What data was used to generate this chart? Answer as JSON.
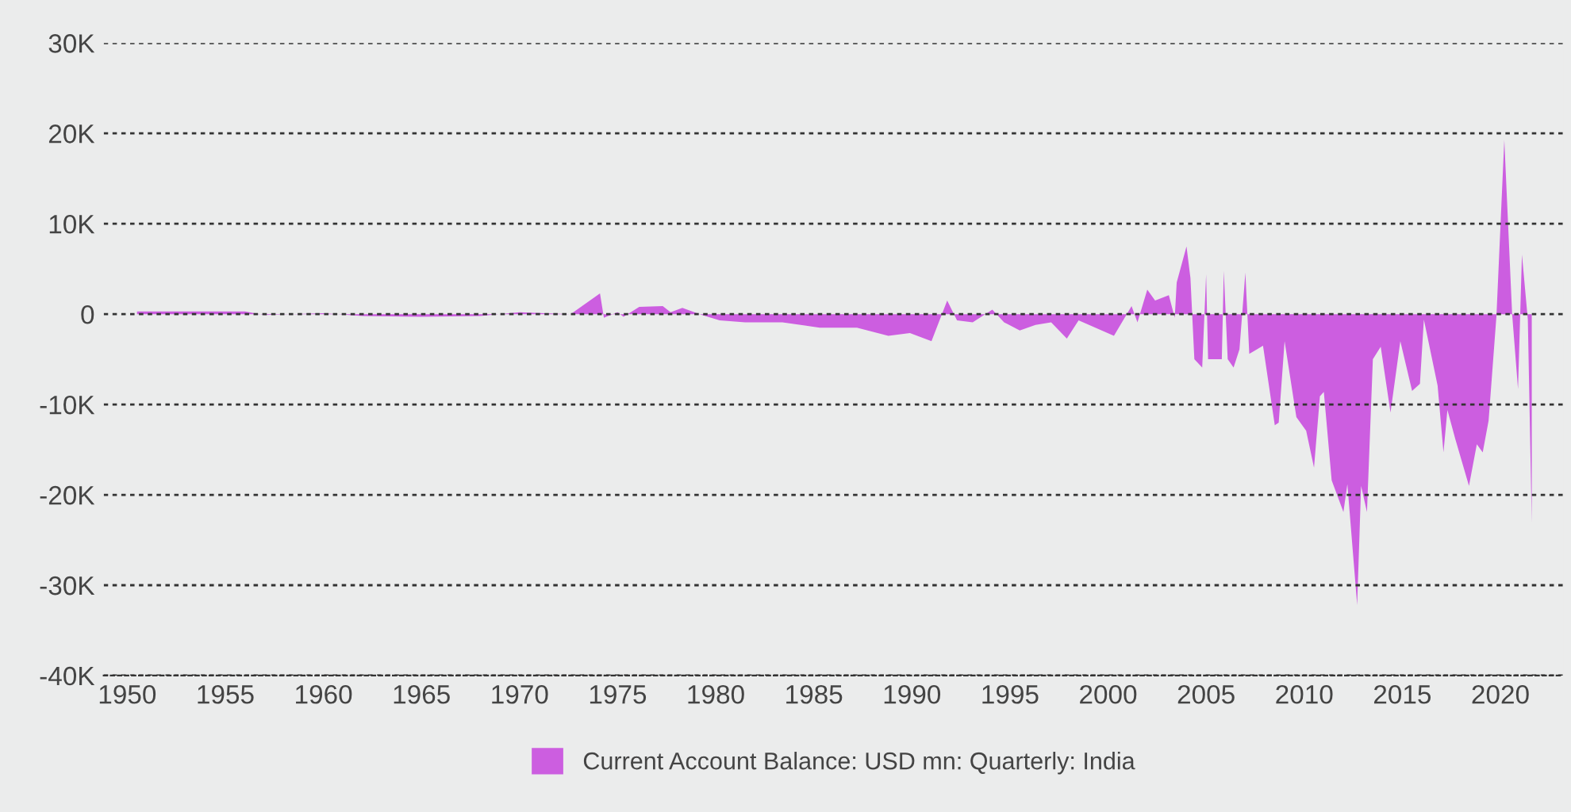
{
  "chart_data": {
    "type": "area",
    "legend": "bottom",
    "grid": "y",
    "xlim": [
      1948.8,
      2023.2
    ],
    "xticks": [
      1950,
      1955,
      1960,
      1965,
      1970,
      1975,
      1980,
      1985,
      1990,
      1995,
      2000,
      2005,
      2010,
      2015,
      2020
    ],
    "ylim": [
      -40000,
      30000
    ],
    "yticks": [
      {
        "value": -40000,
        "label": "-40K"
      },
      {
        "value": -30000,
        "label": "-30K"
      },
      {
        "value": -20000,
        "label": "-20K"
      },
      {
        "value": -10000,
        "label": "-10K"
      },
      0,
      {
        "value": 10000,
        "label": "10K"
      },
      {
        "value": 20000,
        "label": "20K"
      },
      {
        "value": 30000,
        "label": "30K"
      }
    ],
    "series": [
      {
        "name": "Current Account Balance: USD mn: Quarterly: India",
        "color": "#cc5ee0",
        "x": [
          1950.5,
          1956,
          1957,
          1960,
          1962,
          1965,
          1968,
          1970,
          1972.6,
          1974.1,
          1974.3,
          1975,
          1975.3,
          1976.1,
          1977.3,
          1977.7,
          1978.3,
          1979.3,
          1980.2,
          1981.5,
          1983.4,
          1985.3,
          1987.2,
          1988.8,
          1989.9,
          1991.0,
          1991.8,
          1992.3,
          1993.1,
          1994.1,
          1994.7,
          1995.5,
          1996.3,
          1997.1,
          1997.9,
          1998.5,
          2000.3,
          2001.2,
          2001.5,
          2002.0,
          2002.4,
          2003.1,
          2003.4,
          2003.5,
          2004.0,
          2004.2,
          2004.4,
          2004.8,
          2005.0,
          2005.1,
          2005.8,
          2005.9,
          2006.1,
          2006.4,
          2006.7,
          2007.0,
          2007.2,
          2007.9,
          2008.5,
          2008.7,
          2009.0,
          2009.6,
          2010.1,
          2010.5,
          2010.8,
          2011.0,
          2011.4,
          2012.0,
          2012.2,
          2012.7,
          2012.9,
          2013.2,
          2013.5,
          2013.9,
          2014.4,
          2014.9,
          2015.5,
          2015.9,
          2016.1,
          2016.8,
          2017.1,
          2017.3,
          2017.7,
          2018.4,
          2018.8,
          2019.1,
          2019.4,
          2019.8,
          2020.2,
          2020.6,
          2020.9,
          2021.1,
          2021.4,
          2021.6
        ],
        "values": [
          300,
          300,
          -100,
          100,
          -200,
          -300,
          -200,
          200,
          0,
          2300,
          -400,
          200,
          -300,
          800,
          900,
          200,
          700,
          -100,
          -700,
          -900,
          -900,
          -1500,
          -1500,
          -2400,
          -2100,
          -3000,
          1500,
          -700,
          -900,
          500,
          -900,
          -1800,
          -1200,
          -900,
          -2700,
          -700,
          -2400,
          900,
          -900,
          2700,
          1500,
          2100,
          -400,
          3500,
          7500,
          4000,
          -5000,
          -5900,
          4400,
          -5000,
          -5000,
          4800,
          -5000,
          -5900,
          -3900,
          4600,
          -4400,
          -3500,
          -12300,
          -12000,
          -3000,
          -11400,
          -12900,
          -17000,
          -9100,
          -8600,
          -18400,
          -21900,
          -18800,
          -32200,
          -19000,
          -21900,
          -5000,
          -3600,
          -10900,
          -3000,
          -8500,
          -7700,
          -600,
          -7900,
          -15300,
          -10600,
          -13800,
          -19000,
          -14400,
          -15300,
          -11800,
          -200,
          19300,
          0,
          -8300,
          6600,
          -600,
          -23100
        ]
      }
    ]
  }
}
